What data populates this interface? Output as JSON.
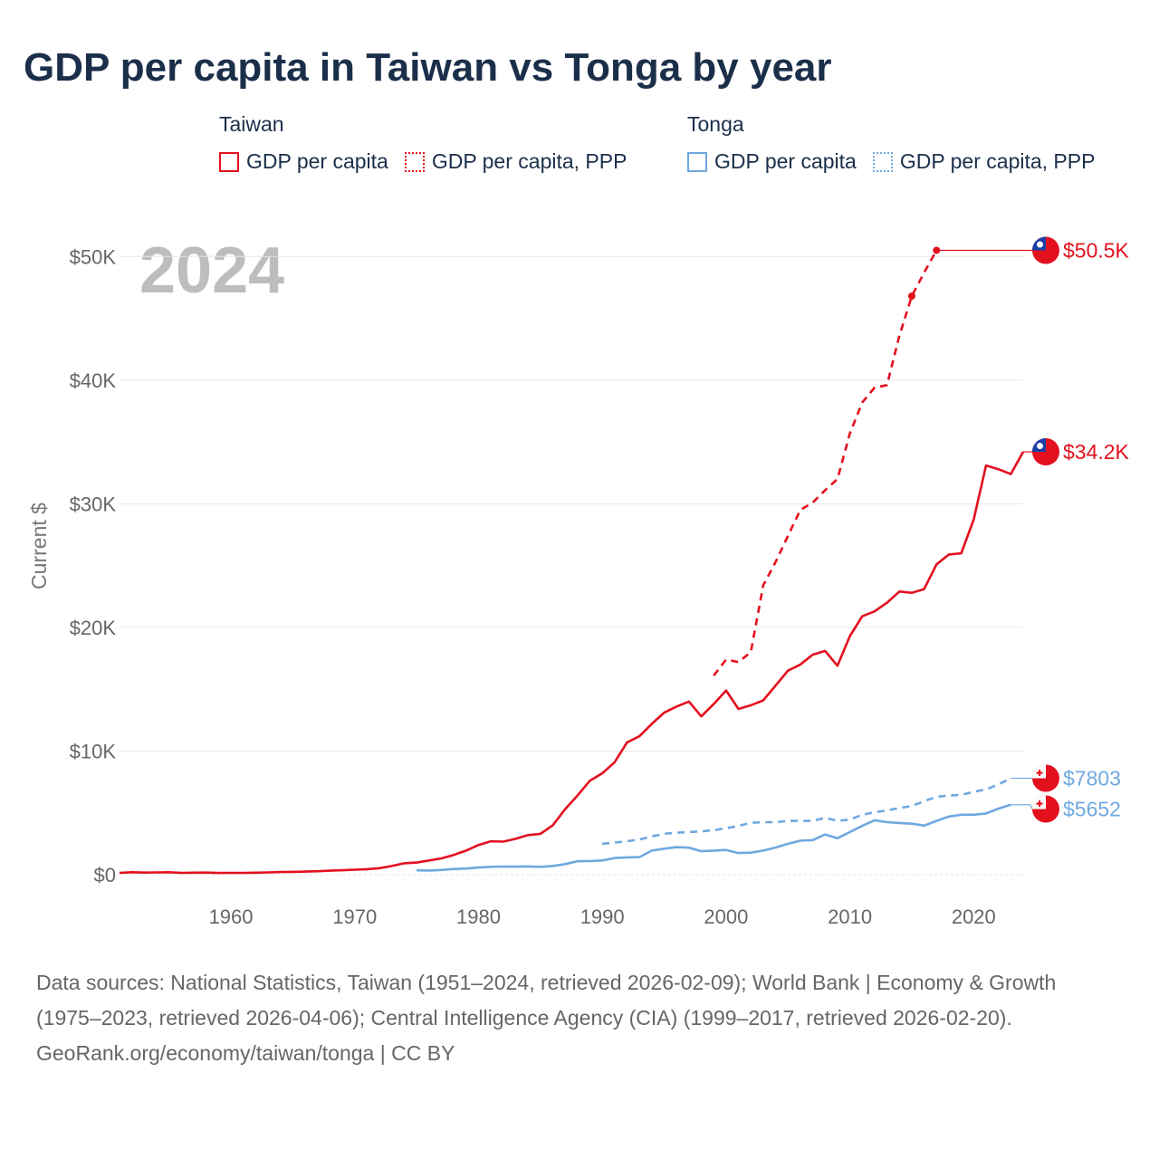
{
  "title": "GDP per capita in Taiwan vs Tonga by year",
  "colors": {
    "taiwan": "#e3101e",
    "tonga": "#6fa8e0",
    "grid": "#e6e6e6",
    "year_watermark": "#bdbdbd"
  },
  "legend": {
    "groups": [
      {
        "name": "Taiwan",
        "color": "#e3101e",
        "items": [
          {
            "label": "GDP per capita",
            "style": "solid"
          },
          {
            "label": "GDP per capita, PPP",
            "style": "dotted"
          }
        ]
      },
      {
        "name": "Tonga",
        "color": "#6fa8e0",
        "items": [
          {
            "label": "GDP per capita",
            "style": "solid"
          },
          {
            "label": "GDP per capita, PPP",
            "style": "dotted"
          }
        ]
      }
    ]
  },
  "chart_data": {
    "type": "line",
    "title": "GDP per capita in Taiwan vs Tonga by year",
    "ylabel": "Current $",
    "xlabel": "",
    "year_label": "2024",
    "xlim": [
      1951,
      2024
    ],
    "ylim": [
      0,
      52000
    ],
    "x_ticks": [
      1960,
      1970,
      1980,
      1990,
      2000,
      2010,
      2020
    ],
    "y_ticks": [
      {
        "value": 0,
        "label": "$0"
      },
      {
        "value": 10000,
        "label": "$10K"
      },
      {
        "value": 20000,
        "label": "$20K"
      },
      {
        "value": 30000,
        "label": "$30K"
      },
      {
        "value": 40000,
        "label": "$40K"
      },
      {
        "value": 50000,
        "label": "$50K"
      }
    ],
    "series": [
      {
        "name": "Taiwan GDP per capita",
        "country": "Taiwan",
        "color": "#e3101e",
        "dash": false,
        "end_label": "$34.2K",
        "end_value": 34200,
        "points": [
          [
            1951,
            150
          ],
          [
            1952,
            200
          ],
          [
            1953,
            170
          ],
          [
            1954,
            180
          ],
          [
            1955,
            200
          ],
          [
            1956,
            150
          ],
          [
            1957,
            160
          ],
          [
            1958,
            170
          ],
          [
            1959,
            140
          ],
          [
            1960,
            150
          ],
          [
            1961,
            150
          ],
          [
            1962,
            160
          ],
          [
            1963,
            180
          ],
          [
            1964,
            210
          ],
          [
            1965,
            230
          ],
          [
            1966,
            250
          ],
          [
            1967,
            280
          ],
          [
            1968,
            320
          ],
          [
            1969,
            360
          ],
          [
            1970,
            400
          ],
          [
            1971,
            450
          ],
          [
            1972,
            530
          ],
          [
            1973,
            700
          ],
          [
            1974,
            920
          ],
          [
            1975,
            980
          ],
          [
            1976,
            1150
          ],
          [
            1977,
            1320
          ],
          [
            1978,
            1600
          ],
          [
            1979,
            1950
          ],
          [
            1980,
            2400
          ],
          [
            1981,
            2700
          ],
          [
            1982,
            2670
          ],
          [
            1983,
            2900
          ],
          [
            1984,
            3200
          ],
          [
            1985,
            3300
          ],
          [
            1986,
            4000
          ],
          [
            1987,
            5300
          ],
          [
            1988,
            6400
          ],
          [
            1989,
            7600
          ],
          [
            1990,
            8200
          ],
          [
            1991,
            9100
          ],
          [
            1992,
            10700
          ],
          [
            1993,
            11200
          ],
          [
            1994,
            12200
          ],
          [
            1995,
            13100
          ],
          [
            1996,
            13600
          ],
          [
            1997,
            14000
          ],
          [
            1998,
            12800
          ],
          [
            1999,
            13800
          ],
          [
            2000,
            14900
          ],
          [
            2001,
            13400
          ],
          [
            2002,
            13700
          ],
          [
            2003,
            14100
          ],
          [
            2004,
            15300
          ],
          [
            2005,
            16500
          ],
          [
            2006,
            17000
          ],
          [
            2007,
            17800
          ],
          [
            2008,
            18100
          ],
          [
            2009,
            16900
          ],
          [
            2010,
            19300
          ],
          [
            2011,
            20900
          ],
          [
            2012,
            21300
          ],
          [
            2013,
            22000
          ],
          [
            2014,
            22900
          ],
          [
            2015,
            22800
          ],
          [
            2016,
            23100
          ],
          [
            2017,
            25100
          ],
          [
            2018,
            25900
          ],
          [
            2019,
            26000
          ],
          [
            2020,
            28700
          ],
          [
            2021,
            33100
          ],
          [
            2022,
            32800
          ],
          [
            2023,
            32400
          ],
          [
            2024,
            34200
          ]
        ]
      },
      {
        "name": "Taiwan GDP per capita, PPP",
        "country": "Taiwan",
        "color": "#e3101e",
        "dash": true,
        "end_label": "$50.5K",
        "end_value": 50500,
        "markers": [
          2015,
          2017
        ],
        "points": [
          [
            1999,
            16100
          ],
          [
            2000,
            17400
          ],
          [
            2001,
            17200
          ],
          [
            2002,
            18000
          ],
          [
            2003,
            23400
          ],
          [
            2004,
            25300
          ],
          [
            2005,
            27400
          ],
          [
            2006,
            29500
          ],
          [
            2007,
            30100
          ],
          [
            2008,
            31100
          ],
          [
            2009,
            32000
          ],
          [
            2010,
            35700
          ],
          [
            2011,
            38200
          ],
          [
            2012,
            39400
          ],
          [
            2013,
            39600
          ],
          [
            2014,
            43600
          ],
          [
            2015,
            46800
          ],
          [
            2016,
            48700
          ],
          [
            2017,
            50500
          ]
        ]
      },
      {
        "name": "Tonga GDP per capita",
        "country": "Tonga",
        "color": "#6fa8e0",
        "dash": false,
        "end_label": "$5652",
        "end_value": 5652,
        "points": [
          [
            1975,
            350
          ],
          [
            1976,
            340
          ],
          [
            1977,
            380
          ],
          [
            1978,
            460
          ],
          [
            1979,
            500
          ],
          [
            1980,
            580
          ],
          [
            1981,
            640
          ],
          [
            1982,
            660
          ],
          [
            1983,
            650
          ],
          [
            1984,
            670
          ],
          [
            1985,
            640
          ],
          [
            1986,
            700
          ],
          [
            1987,
            860
          ],
          [
            1988,
            1090
          ],
          [
            1989,
            1100
          ],
          [
            1990,
            1150
          ],
          [
            1991,
            1350
          ],
          [
            1992,
            1400
          ],
          [
            1993,
            1420
          ],
          [
            1994,
            1950
          ],
          [
            1995,
            2100
          ],
          [
            1996,
            2230
          ],
          [
            1997,
            2180
          ],
          [
            1998,
            1900
          ],
          [
            1999,
            1950
          ],
          [
            2000,
            2000
          ],
          [
            2001,
            1750
          ],
          [
            2002,
            1780
          ],
          [
            2003,
            1950
          ],
          [
            2004,
            2200
          ],
          [
            2005,
            2500
          ],
          [
            2006,
            2750
          ],
          [
            2007,
            2800
          ],
          [
            2008,
            3250
          ],
          [
            2009,
            2950
          ],
          [
            2010,
            3450
          ],
          [
            2011,
            3950
          ],
          [
            2012,
            4400
          ],
          [
            2013,
            4250
          ],
          [
            2014,
            4180
          ],
          [
            2015,
            4120
          ],
          [
            2016,
            3970
          ],
          [
            2017,
            4350
          ],
          [
            2018,
            4700
          ],
          [
            2019,
            4850
          ],
          [
            2020,
            4850
          ],
          [
            2021,
            4950
          ],
          [
            2022,
            5350
          ],
          [
            2023,
            5652
          ]
        ]
      },
      {
        "name": "Tonga GDP per capita, PPP",
        "country": "Tonga",
        "color": "#6fa8e0",
        "dash": true,
        "end_label": "$7803",
        "end_value": 7803,
        "points": [
          [
            1990,
            2500
          ],
          [
            1991,
            2600
          ],
          [
            1992,
            2700
          ],
          [
            1993,
            2850
          ],
          [
            1994,
            3100
          ],
          [
            1995,
            3300
          ],
          [
            1996,
            3400
          ],
          [
            1997,
            3450
          ],
          [
            1998,
            3500
          ],
          [
            1999,
            3600
          ],
          [
            2000,
            3750
          ],
          [
            2001,
            3950
          ],
          [
            2002,
            4200
          ],
          [
            2003,
            4250
          ],
          [
            2004,
            4250
          ],
          [
            2005,
            4350
          ],
          [
            2006,
            4350
          ],
          [
            2007,
            4350
          ],
          [
            2008,
            4600
          ],
          [
            2009,
            4350
          ],
          [
            2010,
            4450
          ],
          [
            2011,
            4850
          ],
          [
            2012,
            5050
          ],
          [
            2013,
            5200
          ],
          [
            2014,
            5400
          ],
          [
            2015,
            5550
          ],
          [
            2016,
            5950
          ],
          [
            2017,
            6300
          ],
          [
            2018,
            6400
          ],
          [
            2019,
            6450
          ],
          [
            2020,
            6700
          ],
          [
            2021,
            6900
          ],
          [
            2022,
            7300
          ],
          [
            2023,
            7803
          ]
        ]
      }
    ]
  },
  "sources": {
    "text": "Data sources: National Statistics, Taiwan (1951–2024, retrieved 2026-02-09); World Bank | Economy & Growth (1975–2023, retrieved 2026-04-06); Central Intelligence Agency (CIA) (1999–2017, retrieved 2026-02-20).",
    "credit": "GeoRank.org/economy/taiwan/tonga | CC BY"
  }
}
